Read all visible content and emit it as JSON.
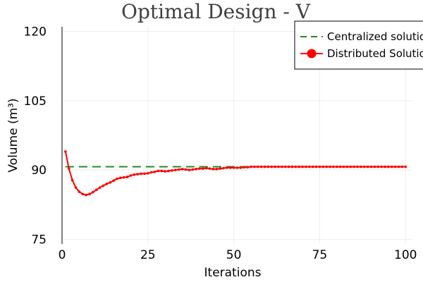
{
  "chart_data": {
    "type": "line",
    "title": "Optimal Design - V",
    "xlabel": "Iterations",
    "ylabel": "Volume (m³)",
    "xlim": [
      0,
      102
    ],
    "ylim": [
      74,
      121
    ],
    "xticks": [
      0,
      25,
      50,
      75,
      100
    ],
    "yticks": [
      75,
      90,
      105,
      120
    ],
    "grid": true,
    "legend_position": "top-right",
    "series": [
      {
        "name": "Centralized solution",
        "style": "dashed",
        "color": "#228b22",
        "x": [
          1,
          100
        ],
        "y": [
          90.7,
          90.7
        ]
      },
      {
        "name": "Distributed Solution",
        "style": "line-with-markers",
        "color": "#ff0000",
        "x": [
          1,
          2,
          3,
          4,
          5,
          6,
          7,
          8,
          9,
          10,
          11,
          12,
          13,
          14,
          15,
          16,
          17,
          18,
          19,
          20,
          21,
          22,
          23,
          24,
          25,
          26,
          27,
          28,
          29,
          30,
          31,
          32,
          33,
          34,
          35,
          36,
          37,
          38,
          39,
          40,
          41,
          42,
          43,
          44,
          45,
          46,
          47,
          48,
          49,
          50,
          51,
          52,
          53,
          54,
          55,
          56,
          57,
          58,
          59,
          60,
          61,
          62,
          63,
          64,
          65,
          66,
          67,
          68,
          69,
          70,
          71,
          72,
          73,
          74,
          75,
          76,
          77,
          78,
          79,
          80,
          81,
          82,
          83,
          84,
          85,
          86,
          87,
          88,
          89,
          90,
          91,
          92,
          93,
          94,
          95,
          96,
          97,
          98,
          99,
          100
        ],
        "y": [
          94.0,
          90.3,
          87.8,
          86.2,
          85.3,
          84.8,
          84.6,
          84.8,
          85.2,
          85.7,
          86.2,
          86.6,
          87.0,
          87.3,
          87.7,
          88.1,
          88.3,
          88.4,
          88.5,
          88.8,
          89.0,
          89.1,
          89.2,
          89.2,
          89.3,
          89.5,
          89.6,
          89.8,
          89.8,
          89.7,
          89.8,
          89.9,
          90.0,
          90.1,
          90.2,
          90.1,
          90.0,
          90.1,
          90.2,
          90.3,
          90.3,
          90.4,
          90.3,
          90.2,
          90.2,
          90.3,
          90.4,
          90.5,
          90.5,
          90.5,
          90.5,
          90.5,
          90.6,
          90.6,
          90.7,
          90.7,
          90.7,
          90.7,
          90.7,
          90.7,
          90.7,
          90.7,
          90.7,
          90.7,
          90.7,
          90.7,
          90.7,
          90.7,
          90.7,
          90.7,
          90.7,
          90.7,
          90.7,
          90.7,
          90.7,
          90.7,
          90.7,
          90.7,
          90.7,
          90.7,
          90.7,
          90.7,
          90.7,
          90.7,
          90.7,
          90.7,
          90.7,
          90.7,
          90.7,
          90.7,
          90.7,
          90.7,
          90.7,
          90.7,
          90.7,
          90.7,
          90.7,
          90.7,
          90.7,
          90.7
        ]
      }
    ]
  }
}
